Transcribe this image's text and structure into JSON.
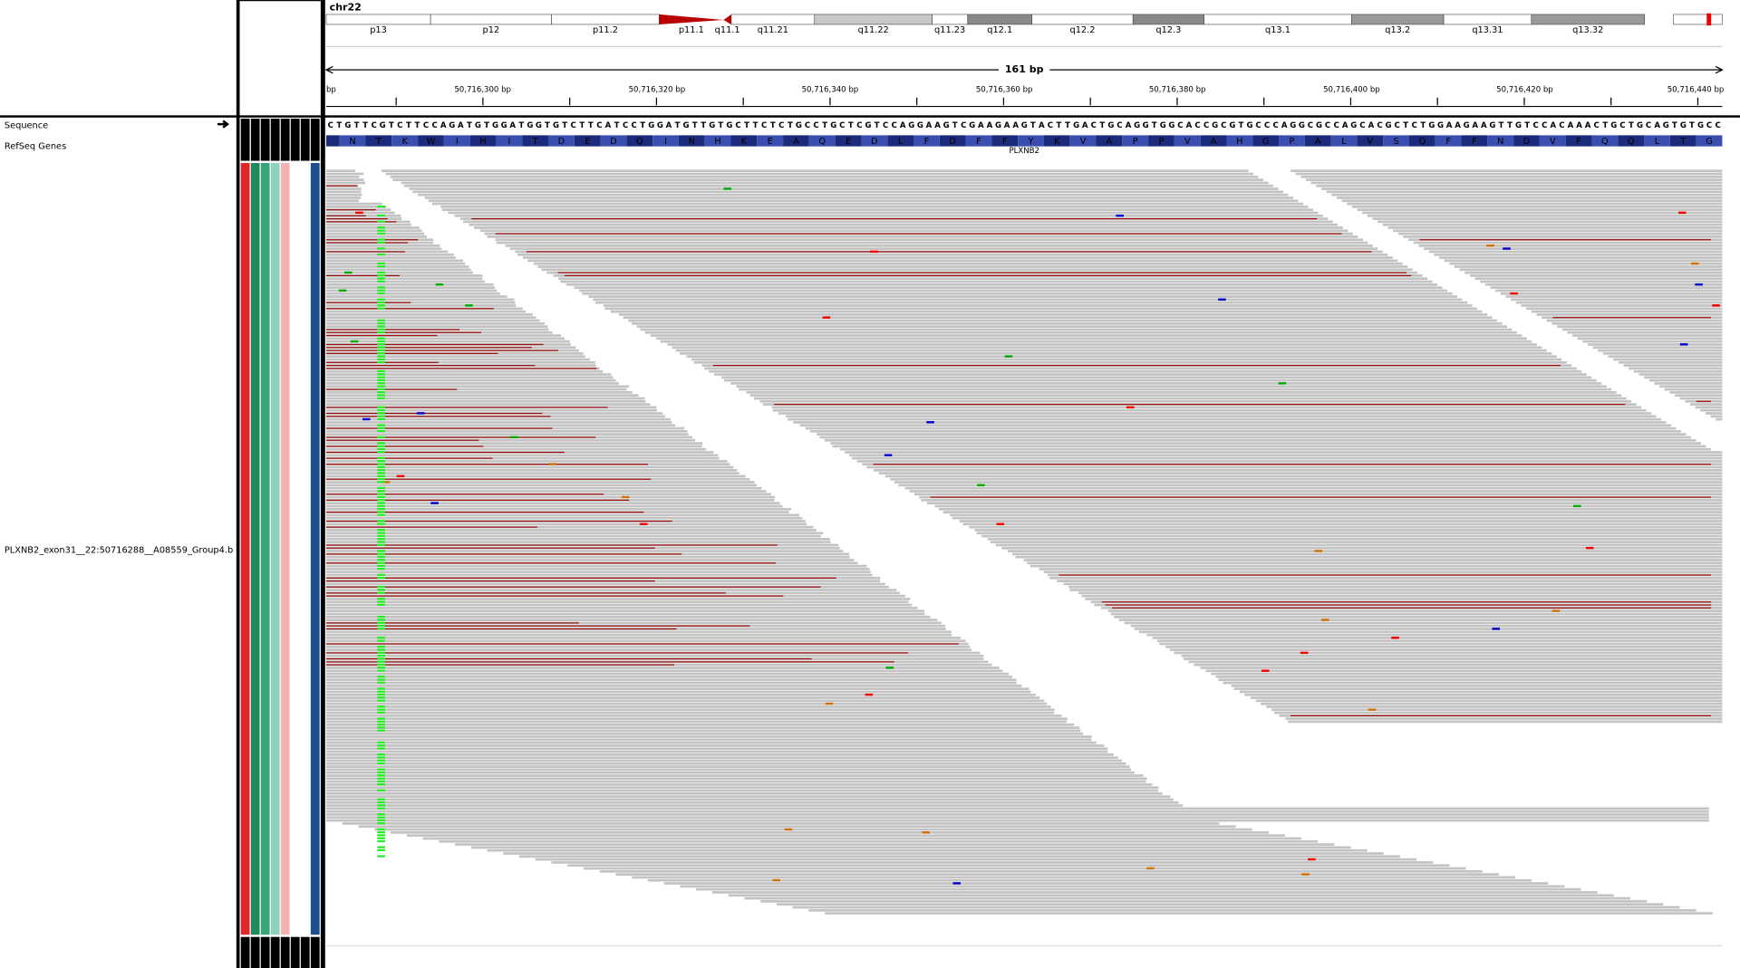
{
  "cytoband": {
    "chromosome": "chr22",
    "bands": [
      "p13",
      "p12",
      "p11.2",
      "p11.1",
      "q11.1",
      "q11.21",
      "q11.22",
      "q11.23",
      "q12.1",
      "q12.2",
      "q12.3",
      "q13.1",
      "q13.2",
      "q13.31",
      "q13.32"
    ]
  },
  "ruler": {
    "span": "161 bp",
    "ticks": [
      "bp",
      "50,716,300 bp",
      "50,716,320 bp",
      "50,716,340 bp",
      "50,716,360 bp",
      "50,716,380 bp",
      "50,716,400 bp",
      "50,716,420 bp",
      "50,716,440 bp"
    ]
  },
  "track_names": {
    "sequence": "Sequence",
    "genes": "RefSeq Genes",
    "alignment": "PLXNB2_exon31__22:50716288__A08559_Group4.b"
  },
  "sequence": "CTGTTCGTCTTCCAGATGTGGATGGTGTCTTCATCCTGGATGTTGTGCTTCTCTGCCTGCTCGTCCAGGAAGTCGAAGAAGTACTTGACTGCAGGTGGCACCGCGTGCCCAGGCGCCAGCACGCTCTGGAAGAAGTTGTCCACAAACTGCTGCAGTGTGCC",
  "translation": [
    "N",
    "T",
    "K",
    "W",
    "I",
    "H",
    "I",
    "T",
    "D",
    "E",
    "D",
    "Q",
    "I",
    "N",
    "H",
    "K",
    "E",
    "A",
    "Q",
    "E",
    "D",
    "L",
    "F",
    "D",
    "F",
    "F",
    "Y",
    "K",
    "V",
    "A",
    "P",
    "P",
    "V",
    "A",
    "H",
    "G",
    "P",
    "A",
    "L",
    "V",
    "S",
    "Q",
    "F",
    "F",
    "N",
    "D",
    "V",
    "F",
    "Q",
    "Q",
    "L",
    "T",
    "G"
  ],
  "gene": "PLXNB2"
}
